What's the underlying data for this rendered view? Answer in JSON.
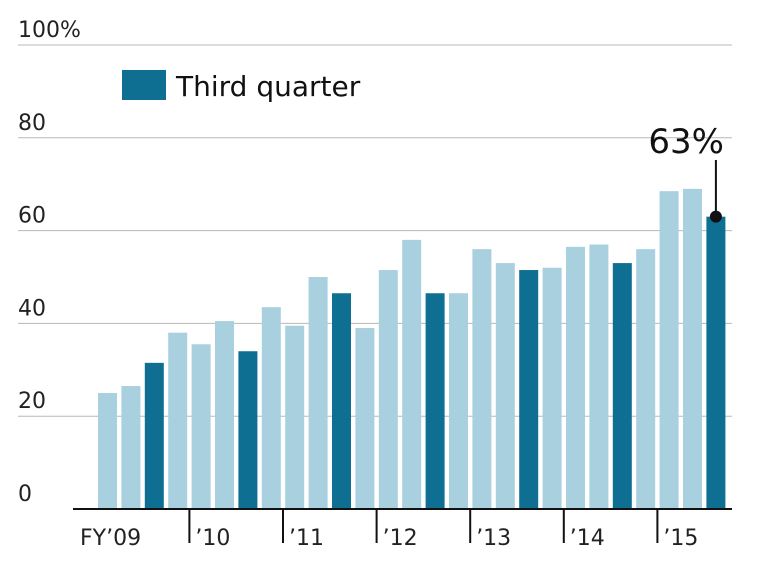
{
  "chart_data": {
    "type": "bar",
    "title": "",
    "xlabel": "",
    "ylabel": "",
    "ylim": [
      0,
      100
    ],
    "y_ticks": [
      {
        "value": 0,
        "label": "0"
      },
      {
        "value": 20,
        "label": "20"
      },
      {
        "value": 40,
        "label": "40"
      },
      {
        "value": 60,
        "label": "60"
      },
      {
        "value": 80,
        "label": "80"
      },
      {
        "value": 100,
        "label": "100%"
      }
    ],
    "grid": true,
    "legend": {
      "position": "top-left",
      "entries": [
        {
          "label": "Third quarter",
          "color": "#0e6f93"
        }
      ]
    },
    "year_labels": [
      "FY’09",
      "’10",
      "’11",
      "’12",
      "’13",
      "’14",
      "’15"
    ],
    "year_start_index": [
      0,
      4,
      8,
      12,
      16,
      20,
      24
    ],
    "values": [
      25,
      26.5,
      31.5,
      38,
      35.5,
      40.5,
      34,
      43.5,
      39.5,
      50,
      46.5,
      39,
      51.5,
      58,
      46.5,
      46.5,
      56,
      53,
      51.5,
      52,
      56.5,
      57,
      53,
      56,
      68.5,
      69,
      63
    ],
    "third_quarter": [
      false,
      false,
      true,
      false,
      false,
      false,
      true,
      false,
      false,
      false,
      true,
      false,
      false,
      false,
      true,
      false,
      false,
      false,
      true,
      false,
      false,
      false,
      true,
      false,
      false,
      false,
      true
    ],
    "colors": {
      "regular": "#a8d0df",
      "third_quarter": "#0e6f93",
      "axis": "#111111",
      "grid": "#b8b8b8"
    },
    "annotation": {
      "index": 26,
      "label": "63%"
    }
  }
}
